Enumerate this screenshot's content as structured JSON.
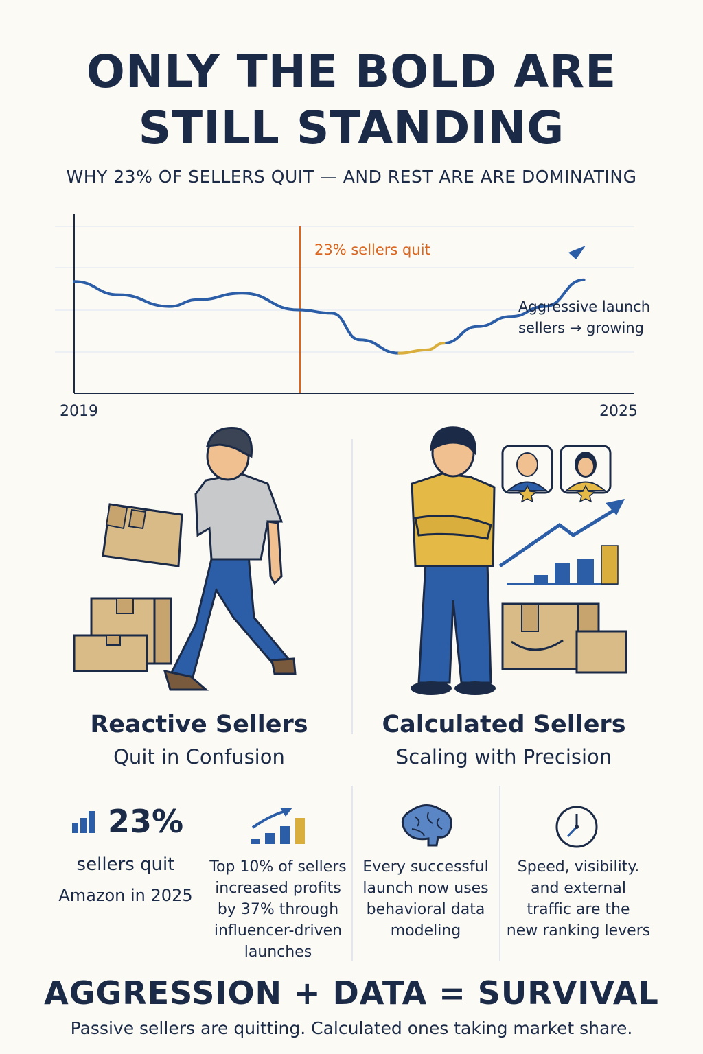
{
  "header": {
    "title_line1": "ONLY THE BOLD ARE",
    "title_line2": "STILL STANDING",
    "subtitle": "WHY 23% OF SELLERS QUIT — AND REST ARE ARE DOMINATING"
  },
  "chart_data": {
    "type": "line",
    "x_start_label": "2019",
    "x_end_label": "2025",
    "marker_label": "23% sellers quit",
    "annotation_line1": "Aggressive launch",
    "annotation_line2": "sellers → growing",
    "x": [
      0,
      0.08,
      0.17,
      0.22,
      0.3,
      0.4,
      0.46,
      0.51,
      0.58,
      0.63,
      0.66,
      0.72,
      0.78,
      0.84,
      0.91
    ],
    "values": [
      67,
      59,
      52,
      56,
      60,
      50,
      48,
      32,
      24,
      26,
      30,
      40,
      46,
      52,
      68
    ],
    "marker_x": 0.4,
    "colors": {
      "line": "#2b5ea7",
      "highlight": "#d9ae3c",
      "marker": "#d9651e",
      "grid": "#dde3ee"
    }
  },
  "left": {
    "title": "Reactive Sellers",
    "subtitle": "Quit in Confusion"
  },
  "right": {
    "title": "Calculated Sellers",
    "subtitle": "Scaling with Precision"
  },
  "stats": [
    {
      "icon": "bar-chart-icon",
      "big": "23%",
      "line1": "sellers quit",
      "line2": "Amazon in 2025"
    },
    {
      "icon": "growth-chart-icon",
      "text": [
        "Top 10% of sellers",
        "increased profits",
        "by 37% through",
        "influencer-driven",
        "launches"
      ]
    },
    {
      "icon": "brain-icon",
      "text": [
        "Every successful",
        "launch now uses",
        "behavioral data",
        "modeling"
      ]
    },
    {
      "icon": "clock-icon",
      "text": [
        "Speed, visibility.",
        "and external",
        "traffic are the",
        "new ranking levers"
      ]
    }
  ],
  "footer": {
    "title": "AGGRESSION + DATA = SURVIVAL",
    "subtitle": "Passive sellers are quitting. Calculated ones taking market share."
  }
}
